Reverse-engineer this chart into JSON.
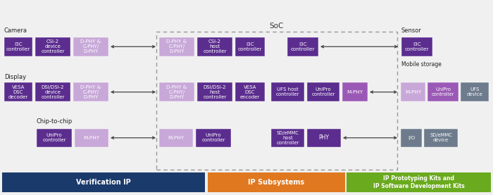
{
  "bg_color": "#f0f0f0",
  "dark_purple": "#5b2d8e",
  "medium_purple": "#9b59b6",
  "light_purple": "#c8a8d8",
  "gray_block": "#6d7b8d",
  "blue_bar": "#1a3a6b",
  "orange_bar": "#e07820",
  "green_bar": "#6aaa1e",
  "label_color": "#222222",
  "soc_label": "SoC",
  "camera_label": "Camera",
  "display_label": "Display",
  "chip_label": "Chip-to-chip",
  "sensor_label": "Sensor",
  "mobile_label": "Mobile storage",
  "bar1_text": "Verification IP",
  "bar2_text": "IP Subsystems",
  "bar3_text": "IP Prototyping Kits and\nIP Software Development Kits"
}
